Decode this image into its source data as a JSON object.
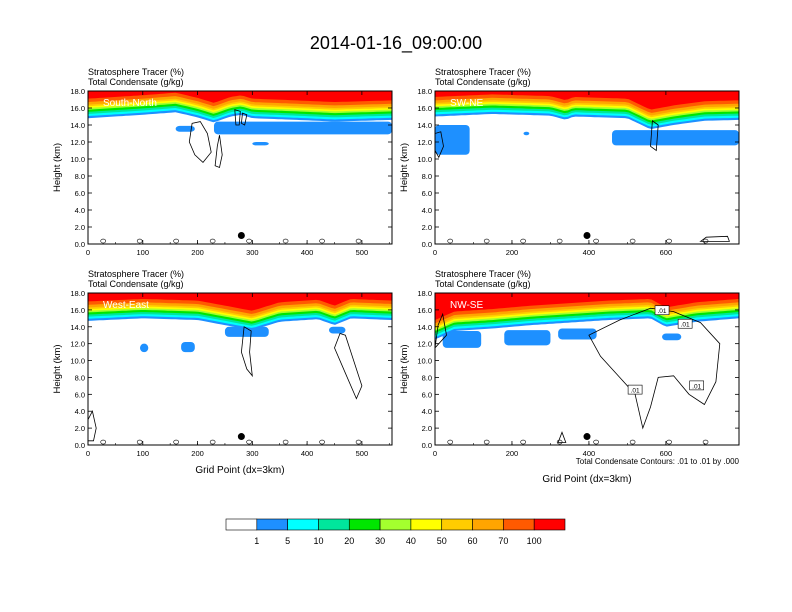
{
  "title": "2014-01-16_09:00:00",
  "footer_note": "Total Condensate Contours: .01 to .01 by .000",
  "colors": {
    "levels": [
      "#ffffff",
      "#1e90ff",
      "#00ffff",
      "#00e69c",
      "#00e600",
      "#a4ff2e",
      "#ffff00",
      "#ffcc00",
      "#ffa500",
      "#ff5a00",
      "#ff0000"
    ],
    "contour": "#000000"
  },
  "colorbar": {
    "labels": [
      "1",
      "5",
      "10",
      "20",
      "30",
      "40",
      "50",
      "60",
      "70",
      "100"
    ]
  },
  "chart_data": [
    {
      "type": "heatmap",
      "label": "South-North",
      "title_line1": "Stratosphere Tracer   (%)",
      "title_line2": "Total Condensate   (g/kg)",
      "xlabel": "",
      "ylabel": "Height (km)",
      "xlim": [
        0,
        555
      ],
      "ylim": [
        0,
        18
      ],
      "xticks": [
        "0",
        "100",
        "200",
        "300",
        "400",
        "500"
      ],
      "yticks": [
        "0.0",
        "2.0",
        "4.0",
        "6.0",
        "8.0",
        "10.0",
        "12.0",
        "14.0",
        "16.0",
        "18.0"
      ],
      "marker_x": 280,
      "tracer_base_profile": [
        [
          0,
          14.8
        ],
        [
          100,
          15.2
        ],
        [
          160,
          15.5
        ],
        [
          200,
          14.9
        ],
        [
          230,
          14.3
        ],
        [
          260,
          15.0
        ],
        [
          280,
          15.2
        ],
        [
          300,
          14.8
        ],
        [
          380,
          14.6
        ],
        [
          450,
          14.4
        ],
        [
          555,
          14.6
        ]
      ],
      "blue_patches": [
        [
          230,
          555,
          12.9,
          14.4
        ],
        [
          160,
          195,
          13.2,
          13.9
        ],
        [
          300,
          330,
          11.6,
          12.0
        ]
      ],
      "condensate_contours": [
        [
          [
            190,
            14.2
          ],
          [
            185,
            12.0
          ],
          [
            195,
            10.5
          ],
          [
            210,
            9.6
          ],
          [
            225,
            10.8
          ],
          [
            218,
            13.0
          ],
          [
            205,
            14.4
          ]
        ],
        [
          [
            232,
            9.2
          ],
          [
            236,
            11.5
          ],
          [
            240,
            12.8
          ],
          [
            245,
            10.5
          ],
          [
            240,
            9.0
          ]
        ],
        [
          [
            270,
            14.0
          ],
          [
            268,
            15.8
          ],
          [
            278,
            15.6
          ],
          [
            276,
            14.0
          ]
        ],
        [
          [
            280,
            14.2
          ],
          [
            282,
            15.4
          ],
          [
            290,
            15.2
          ],
          [
            286,
            14.0
          ]
        ]
      ]
    },
    {
      "type": "heatmap",
      "label": "SW-NE",
      "title_line1": "Stratosphere Tracer   (%)",
      "title_line2": "Total Condensate   (g/kg)",
      "xlabel": "",
      "ylabel": "Height (km)",
      "xlim": [
        0,
        790
      ],
      "ylim": [
        0,
        18
      ],
      "xticks": [
        "0",
        "200",
        "400",
        "600"
      ],
      "yticks": [
        "0.0",
        "2.0",
        "4.0",
        "6.0",
        "8.0",
        "10.0",
        "12.0",
        "14.0",
        "16.0",
        "18.0"
      ],
      "marker_x": 395,
      "tracer_base_profile": [
        [
          0,
          15.0
        ],
        [
          150,
          15.3
        ],
        [
          300,
          15.1
        ],
        [
          340,
          14.6
        ],
        [
          360,
          15.0
        ],
        [
          500,
          14.8
        ],
        [
          560,
          13.5
        ],
        [
          620,
          14.0
        ],
        [
          700,
          14.5
        ],
        [
          790,
          14.6
        ]
      ],
      "blue_patches": [
        [
          0,
          90,
          10.5,
          14.0
        ],
        [
          460,
          790,
          11.6,
          13.4
        ],
        [
          230,
          245,
          12.8,
          13.2
        ]
      ],
      "condensate_contours": [
        [
          [
            0,
            11.0
          ],
          [
            10,
            10.2
          ],
          [
            22,
            11.5
          ],
          [
            15,
            13.2
          ],
          [
            0,
            13.0
          ]
        ],
        [
          [
            690,
            0.3
          ],
          [
            705,
            0.8
          ],
          [
            760,
            0.9
          ],
          [
            765,
            0.3
          ]
        ],
        [
          [
            560,
            11.5
          ],
          [
            565,
            14.5
          ],
          [
            580,
            14.0
          ],
          [
            575,
            11.0
          ]
        ]
      ]
    },
    {
      "type": "heatmap",
      "label": "West-East",
      "title_line1": "Stratosphere Tracer   (%)",
      "title_line2": "Total Condensate   (g/kg)",
      "xlabel": "Grid Point (dx=3km)",
      "ylabel": "Height (km)",
      "xlim": [
        0,
        555
      ],
      "ylim": [
        0,
        18
      ],
      "xticks": [
        "0",
        "100",
        "200",
        "300",
        "400",
        "500"
      ],
      "yticks": [
        "0.0",
        "2.0",
        "4.0",
        "6.0",
        "8.0",
        "10.0",
        "12.0",
        "14.0",
        "16.0",
        "18.0"
      ],
      "marker_x": 280,
      "tracer_base_profile": [
        [
          0,
          14.7
        ],
        [
          100,
          15.0
        ],
        [
          200,
          14.8
        ],
        [
          250,
          14.2
        ],
        [
          300,
          13.6
        ],
        [
          350,
          14.6
        ],
        [
          420,
          14.9
        ],
        [
          450,
          14.2
        ],
        [
          480,
          15.0
        ],
        [
          555,
          14.8
        ]
      ],
      "blue_patches": [
        [
          95,
          110,
          11.0,
          12.0
        ],
        [
          170,
          195,
          11.0,
          12.2
        ],
        [
          250,
          330,
          12.8,
          14.0
        ],
        [
          440,
          470,
          13.2,
          14.0
        ]
      ],
      "condensate_contours": [
        [
          [
            285,
            14.0
          ],
          [
            280,
            11.0
          ],
          [
            290,
            9.0
          ],
          [
            300,
            8.2
          ],
          [
            295,
            11.0
          ],
          [
            298,
            13.5
          ]
        ],
        [
          [
            460,
            13.2
          ],
          [
            450,
            11.5
          ],
          [
            470,
            8.5
          ],
          [
            490,
            5.5
          ],
          [
            500,
            7.0
          ],
          [
            480,
            11.0
          ],
          [
            470,
            13.0
          ]
        ],
        [
          [
            0,
            3.0
          ],
          [
            8,
            4.0
          ],
          [
            15,
            2.0
          ],
          [
            10,
            0.5
          ],
          [
            0,
            0.5
          ]
        ]
      ]
    },
    {
      "type": "heatmap",
      "label": "NW-SE",
      "title_line1": "Stratosphere Tracer   (%)",
      "title_line2": "Total Condensate   (g/kg)",
      "xlabel": "Grid Point (dx=3km)",
      "ylabel": "Height (km)",
      "xlim": [
        0,
        790
      ],
      "ylim": [
        0,
        18
      ],
      "xticks": [
        "0",
        "200",
        "400",
        "600"
      ],
      "yticks": [
        "0.0",
        "2.0",
        "4.0",
        "6.0",
        "8.0",
        "10.0",
        "12.0",
        "14.0",
        "16.0",
        "18.0"
      ],
      "marker_x": 395,
      "tracer_base_profile": [
        [
          0,
          12.5
        ],
        [
          50,
          13.5
        ],
        [
          150,
          13.8
        ],
        [
          250,
          14.2
        ],
        [
          350,
          14.5
        ],
        [
          450,
          14.8
        ],
        [
          560,
          15.0
        ],
        [
          600,
          14.0
        ],
        [
          680,
          14.6
        ],
        [
          790,
          15.0
        ]
      ],
      "blue_patches": [
        [
          20,
          120,
          11.5,
          13.5
        ],
        [
          180,
          300,
          11.8,
          13.6
        ],
        [
          320,
          420,
          12.5,
          13.8
        ],
        [
          590,
          640,
          12.4,
          13.2
        ]
      ],
      "contour_labels": [
        {
          "x": 590,
          "y": 15.9,
          "text": ".01"
        },
        {
          "x": 650,
          "y": 14.3,
          "text": ".01"
        },
        {
          "x": 520,
          "y": 6.5,
          "text": ".01"
        },
        {
          "x": 680,
          "y": 7.0,
          "text": ".01"
        }
      ],
      "condensate_contours": [
        [
          [
            560,
            16.2
          ],
          [
            480,
            14.8
          ],
          [
            400,
            13.0
          ],
          [
            430,
            10.5
          ],
          [
            480,
            8.0
          ],
          [
            520,
            6.0
          ],
          [
            540,
            2.0
          ],
          [
            560,
            4.5
          ],
          [
            580,
            8.0
          ],
          [
            620,
            8.2
          ],
          [
            660,
            6.0
          ],
          [
            700,
            4.8
          ],
          [
            730,
            7.5
          ],
          [
            740,
            12.0
          ],
          [
            690,
            14.5
          ],
          [
            620,
            15.8
          ]
        ],
        [
          [
            0,
            11.5
          ],
          [
            8,
            14.2
          ],
          [
            20,
            15.5
          ],
          [
            30,
            13.0
          ]
        ],
        [
          [
            320,
            0.3
          ],
          [
            330,
            1.5
          ],
          [
            340,
            0.3
          ]
        ]
      ]
    }
  ]
}
